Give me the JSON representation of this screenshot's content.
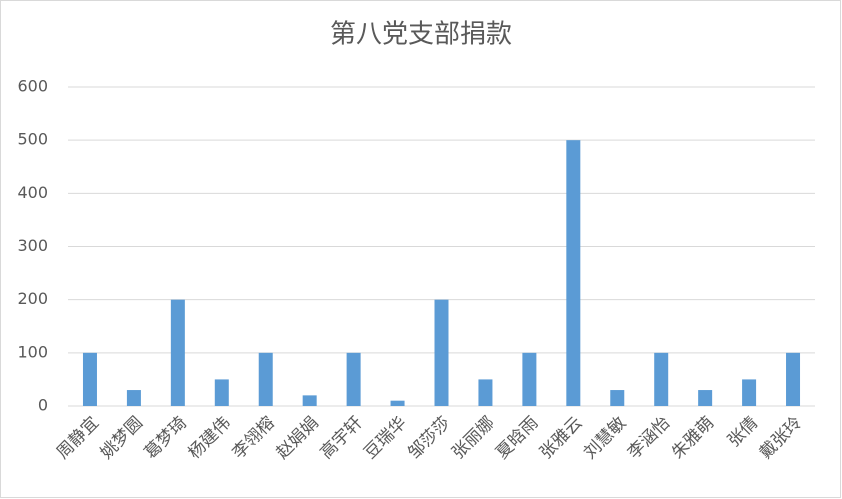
{
  "chart_data": {
    "type": "bar",
    "title": "第八党支部捐款",
    "categories": [
      "周静宜",
      "姚梦圆",
      "葛梦琦",
      "杨建伟",
      "李翎榕",
      "赵娟娟",
      "高宇轩",
      "豆瑞华",
      "邹莎莎",
      "张丽娜",
      "夏晗雨",
      "张雅云",
      "刘慧敏",
      "李涵怡",
      "朱雅萌",
      "张倩",
      "戴张玲"
    ],
    "values": [
      100,
      30,
      200,
      50,
      100,
      20,
      100,
      10,
      200,
      50,
      100,
      500,
      30,
      100,
      30,
      50,
      100
    ],
    "color": "#5b9bd5",
    "ylim": [
      0,
      600
    ],
    "yticks": [
      0,
      100,
      200,
      300,
      400,
      500,
      600
    ],
    "grid": true
  }
}
